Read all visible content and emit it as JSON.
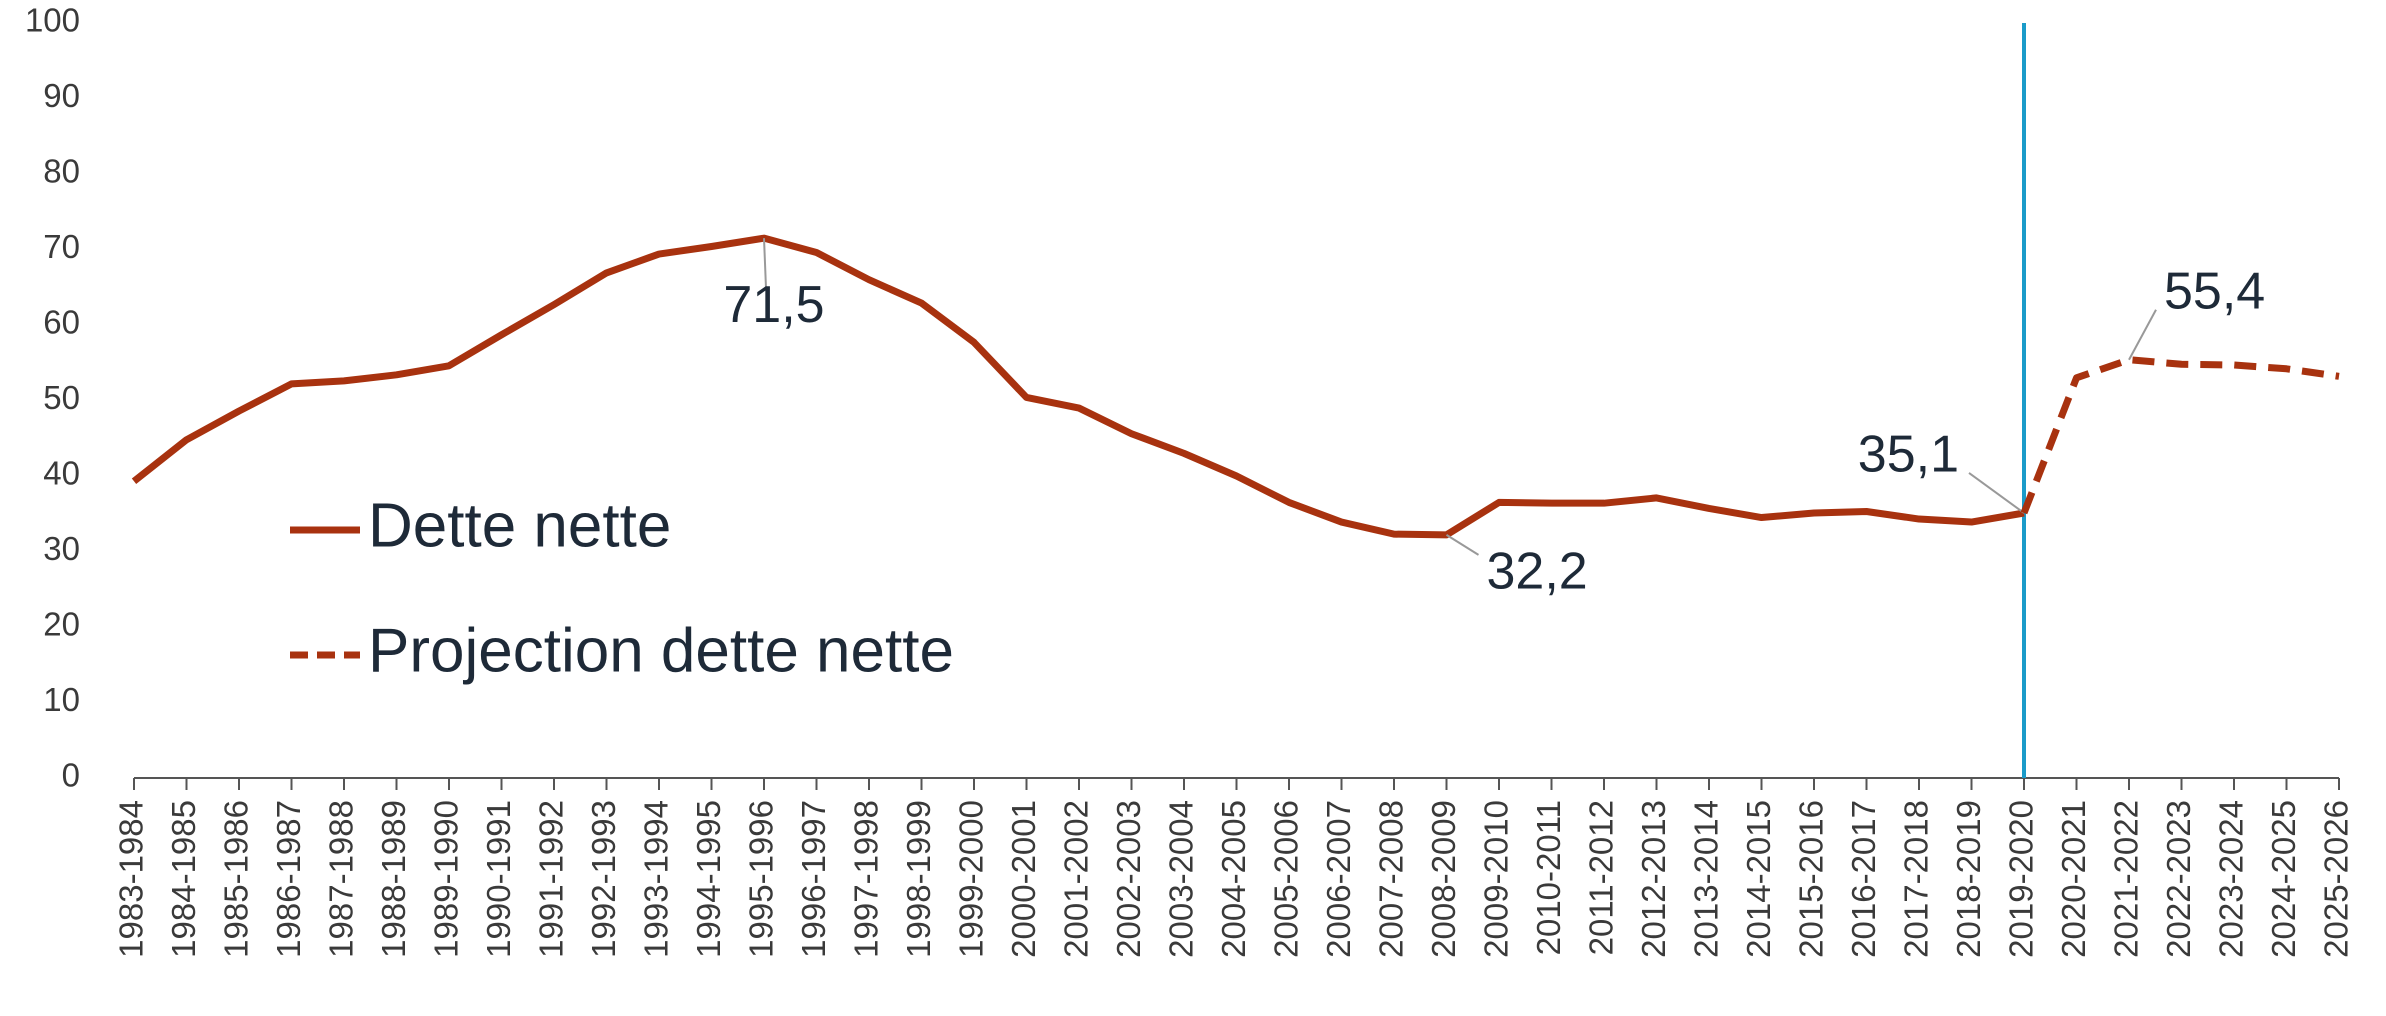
{
  "chart_data": {
    "type": "line",
    "categories": [
      "1983-1984",
      "1984-1985",
      "1985-1986",
      "1986-1987",
      "1987-1988",
      "1988-1989",
      "1989-1990",
      "1990-1991",
      "1991-1992",
      "1992-1993",
      "1993-1994",
      "1994-1995",
      "1995-1996",
      "1996-1997",
      "1997-1998",
      "1998-1999",
      "1999-2000",
      "2000-2001",
      "2001-2002",
      "2002-2003",
      "2003-2004",
      "2004-2005",
      "2005-2006",
      "2006-2007",
      "2007-2008",
      "2008-2009",
      "2009-2010",
      "2010-2011",
      "2011-2012",
      "2012-2013",
      "2013-2014",
      "2014-2015",
      "2015-2016",
      "2016-2017",
      "2017-2018",
      "2018-2019",
      "2019-2020",
      "2020-2021",
      "2021-2022",
      "2022-2023",
      "2023-2024",
      "2024-2025",
      "2025-2026"
    ],
    "series": [
      {
        "name": "Dette nette",
        "color": "#a8320f",
        "dash": false,
        "values": [
          39.3,
          44.8,
          48.6,
          52.2,
          52.6,
          53.4,
          54.6,
          58.7,
          62.7,
          66.9,
          69.4,
          70.4,
          71.5,
          69.6,
          66.0,
          62.9,
          57.7,
          50.4,
          49.0,
          45.6,
          43.0,
          40.0,
          36.5,
          33.9,
          32.3,
          32.2,
          36.5,
          36.4,
          36.4,
          37.1,
          35.7,
          34.5,
          35.1,
          35.3,
          34.3,
          33.9,
          35.1,
          null,
          null,
          null,
          null,
          null,
          null
        ],
        "value_labels": [
          null,
          null,
          null,
          null,
          null,
          null,
          null,
          null,
          null,
          null,
          null,
          null,
          "71,5",
          null,
          null,
          null,
          null,
          null,
          null,
          null,
          null,
          null,
          null,
          null,
          null,
          "32,2",
          null,
          null,
          null,
          null,
          null,
          null,
          null,
          null,
          null,
          null,
          "35,1",
          null,
          null,
          null,
          null,
          null,
          null
        ]
      },
      {
        "name": "Projection dette nette",
        "color": "#a8320f",
        "dash": true,
        "values": [
          null,
          null,
          null,
          null,
          null,
          null,
          null,
          null,
          null,
          null,
          null,
          null,
          null,
          null,
          null,
          null,
          null,
          null,
          null,
          null,
          null,
          null,
          null,
          null,
          null,
          null,
          null,
          null,
          null,
          null,
          null,
          null,
          null,
          null,
          null,
          null,
          35.1,
          53.0,
          55.4,
          54.8,
          54.7,
          54.2,
          53.2
        ],
        "value_labels": [
          null,
          null,
          null,
          null,
          null,
          null,
          null,
          null,
          null,
          null,
          null,
          null,
          null,
          null,
          null,
          null,
          null,
          null,
          null,
          null,
          null,
          null,
          null,
          null,
          null,
          null,
          null,
          null,
          null,
          null,
          null,
          null,
          null,
          null,
          null,
          null,
          null,
          null,
          "55,4",
          null,
          null,
          null,
          null
        ]
      }
    ],
    "ylim": [
      0,
      100
    ],
    "yticks": [
      0,
      10,
      20,
      30,
      40,
      50,
      60,
      70,
      80,
      90,
      100
    ],
    "grid": false,
    "vline": {
      "x": "2019-2020",
      "color": "#1a9bc9"
    },
    "legend": "left"
  }
}
